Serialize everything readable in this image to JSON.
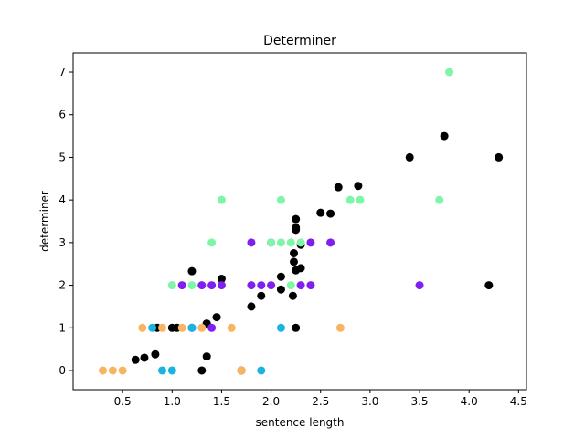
{
  "chart_data": {
    "type": "scatter",
    "title": "Determiner",
    "xlabel": "sentence length",
    "ylabel": "determiner",
    "xlim": [
      0.0,
      4.58
    ],
    "ylim": [
      -0.45,
      7.45
    ],
    "xticks": [
      0.5,
      1.0,
      1.5,
      2.0,
      2.5,
      3.0,
      3.5,
      4.0,
      4.5
    ],
    "xtick_labels": [
      "0.5",
      "1.0",
      "1.5",
      "2.0",
      "2.5",
      "3.0",
      "3.5",
      "4.0",
      "4.5"
    ],
    "yticks": [
      0,
      1,
      2,
      3,
      4,
      5,
      6,
      7
    ],
    "ytick_labels": [
      "0",
      "1",
      "2",
      "3",
      "4",
      "5",
      "6",
      "7"
    ],
    "grid": false,
    "legend": "none",
    "series": [
      {
        "color": "#000000",
        "points": [
          [
            0.63,
            0.25
          ],
          [
            0.72,
            0.3
          ],
          [
            0.83,
            0.38
          ],
          [
            0.85,
            1.0
          ],
          [
            1.0,
            1.0
          ],
          [
            1.05,
            1.0
          ],
          [
            1.2,
            2.33
          ],
          [
            1.3,
            0.0
          ],
          [
            1.35,
            0.33
          ],
          [
            1.35,
            1.1
          ],
          [
            1.45,
            1.25
          ],
          [
            1.5,
            2.15
          ],
          [
            1.7,
            0.0
          ],
          [
            1.8,
            1.5
          ],
          [
            1.9,
            1.75
          ],
          [
            2.1,
            1.9
          ],
          [
            2.1,
            2.2
          ],
          [
            2.22,
            1.75
          ],
          [
            2.25,
            1.0
          ],
          [
            2.23,
            2.75
          ],
          [
            2.23,
            2.55
          ],
          [
            2.25,
            3.3
          ],
          [
            2.25,
            3.35
          ],
          [
            2.25,
            3.55
          ],
          [
            2.25,
            2.35
          ],
          [
            2.3,
            2.4
          ],
          [
            2.3,
            2.95
          ],
          [
            2.5,
            3.7
          ],
          [
            2.6,
            3.68
          ],
          [
            2.68,
            4.3
          ],
          [
            2.88,
            4.33
          ],
          [
            3.4,
            5.0
          ],
          [
            3.75,
            5.5
          ],
          [
            4.2,
            2.0
          ],
          [
            4.3,
            5.0
          ]
        ]
      },
      {
        "color": "#7f1ff0",
        "points": [
          [
            1.1,
            2.0
          ],
          [
            1.2,
            1.0
          ],
          [
            1.3,
            2.0
          ],
          [
            1.4,
            2.0
          ],
          [
            1.4,
            1.0
          ],
          [
            1.5,
            2.0
          ],
          [
            1.8,
            2.0
          ],
          [
            1.8,
            3.0
          ],
          [
            1.9,
            2.0
          ],
          [
            2.0,
            2.0
          ],
          [
            2.0,
            3.0
          ],
          [
            2.3,
            2.0
          ],
          [
            2.4,
            2.0
          ],
          [
            2.4,
            3.0
          ],
          [
            2.6,
            3.0
          ],
          [
            3.5,
            2.0
          ]
        ]
      },
      {
        "color": "#7ff5a8",
        "points": [
          [
            1.0,
            2.0
          ],
          [
            1.2,
            2.0
          ],
          [
            1.4,
            3.0
          ],
          [
            1.5,
            4.0
          ],
          [
            2.0,
            3.0
          ],
          [
            2.1,
            3.0
          ],
          [
            2.1,
            4.0
          ],
          [
            2.2,
            3.0
          ],
          [
            2.2,
            2.0
          ],
          [
            2.3,
            3.0
          ],
          [
            2.8,
            4.0
          ],
          [
            2.9,
            4.0
          ],
          [
            3.7,
            4.0
          ],
          [
            3.8,
            7.0
          ]
        ]
      },
      {
        "color": "#f9b461",
        "points": [
          [
            0.3,
            0.0
          ],
          [
            0.4,
            0.0
          ],
          [
            0.5,
            0.0
          ],
          [
            0.7,
            1.0
          ],
          [
            0.9,
            1.0
          ],
          [
            1.1,
            1.0
          ],
          [
            1.3,
            1.0
          ],
          [
            1.6,
            1.0
          ],
          [
            1.7,
            0.0
          ],
          [
            2.7,
            1.0
          ]
        ]
      },
      {
        "color": "#1bb3e0",
        "points": [
          [
            0.8,
            1.0
          ],
          [
            0.9,
            0.0
          ],
          [
            1.0,
            0.0
          ],
          [
            1.2,
            1.0
          ],
          [
            1.9,
            0.0
          ],
          [
            2.1,
            1.0
          ]
        ]
      }
    ]
  }
}
